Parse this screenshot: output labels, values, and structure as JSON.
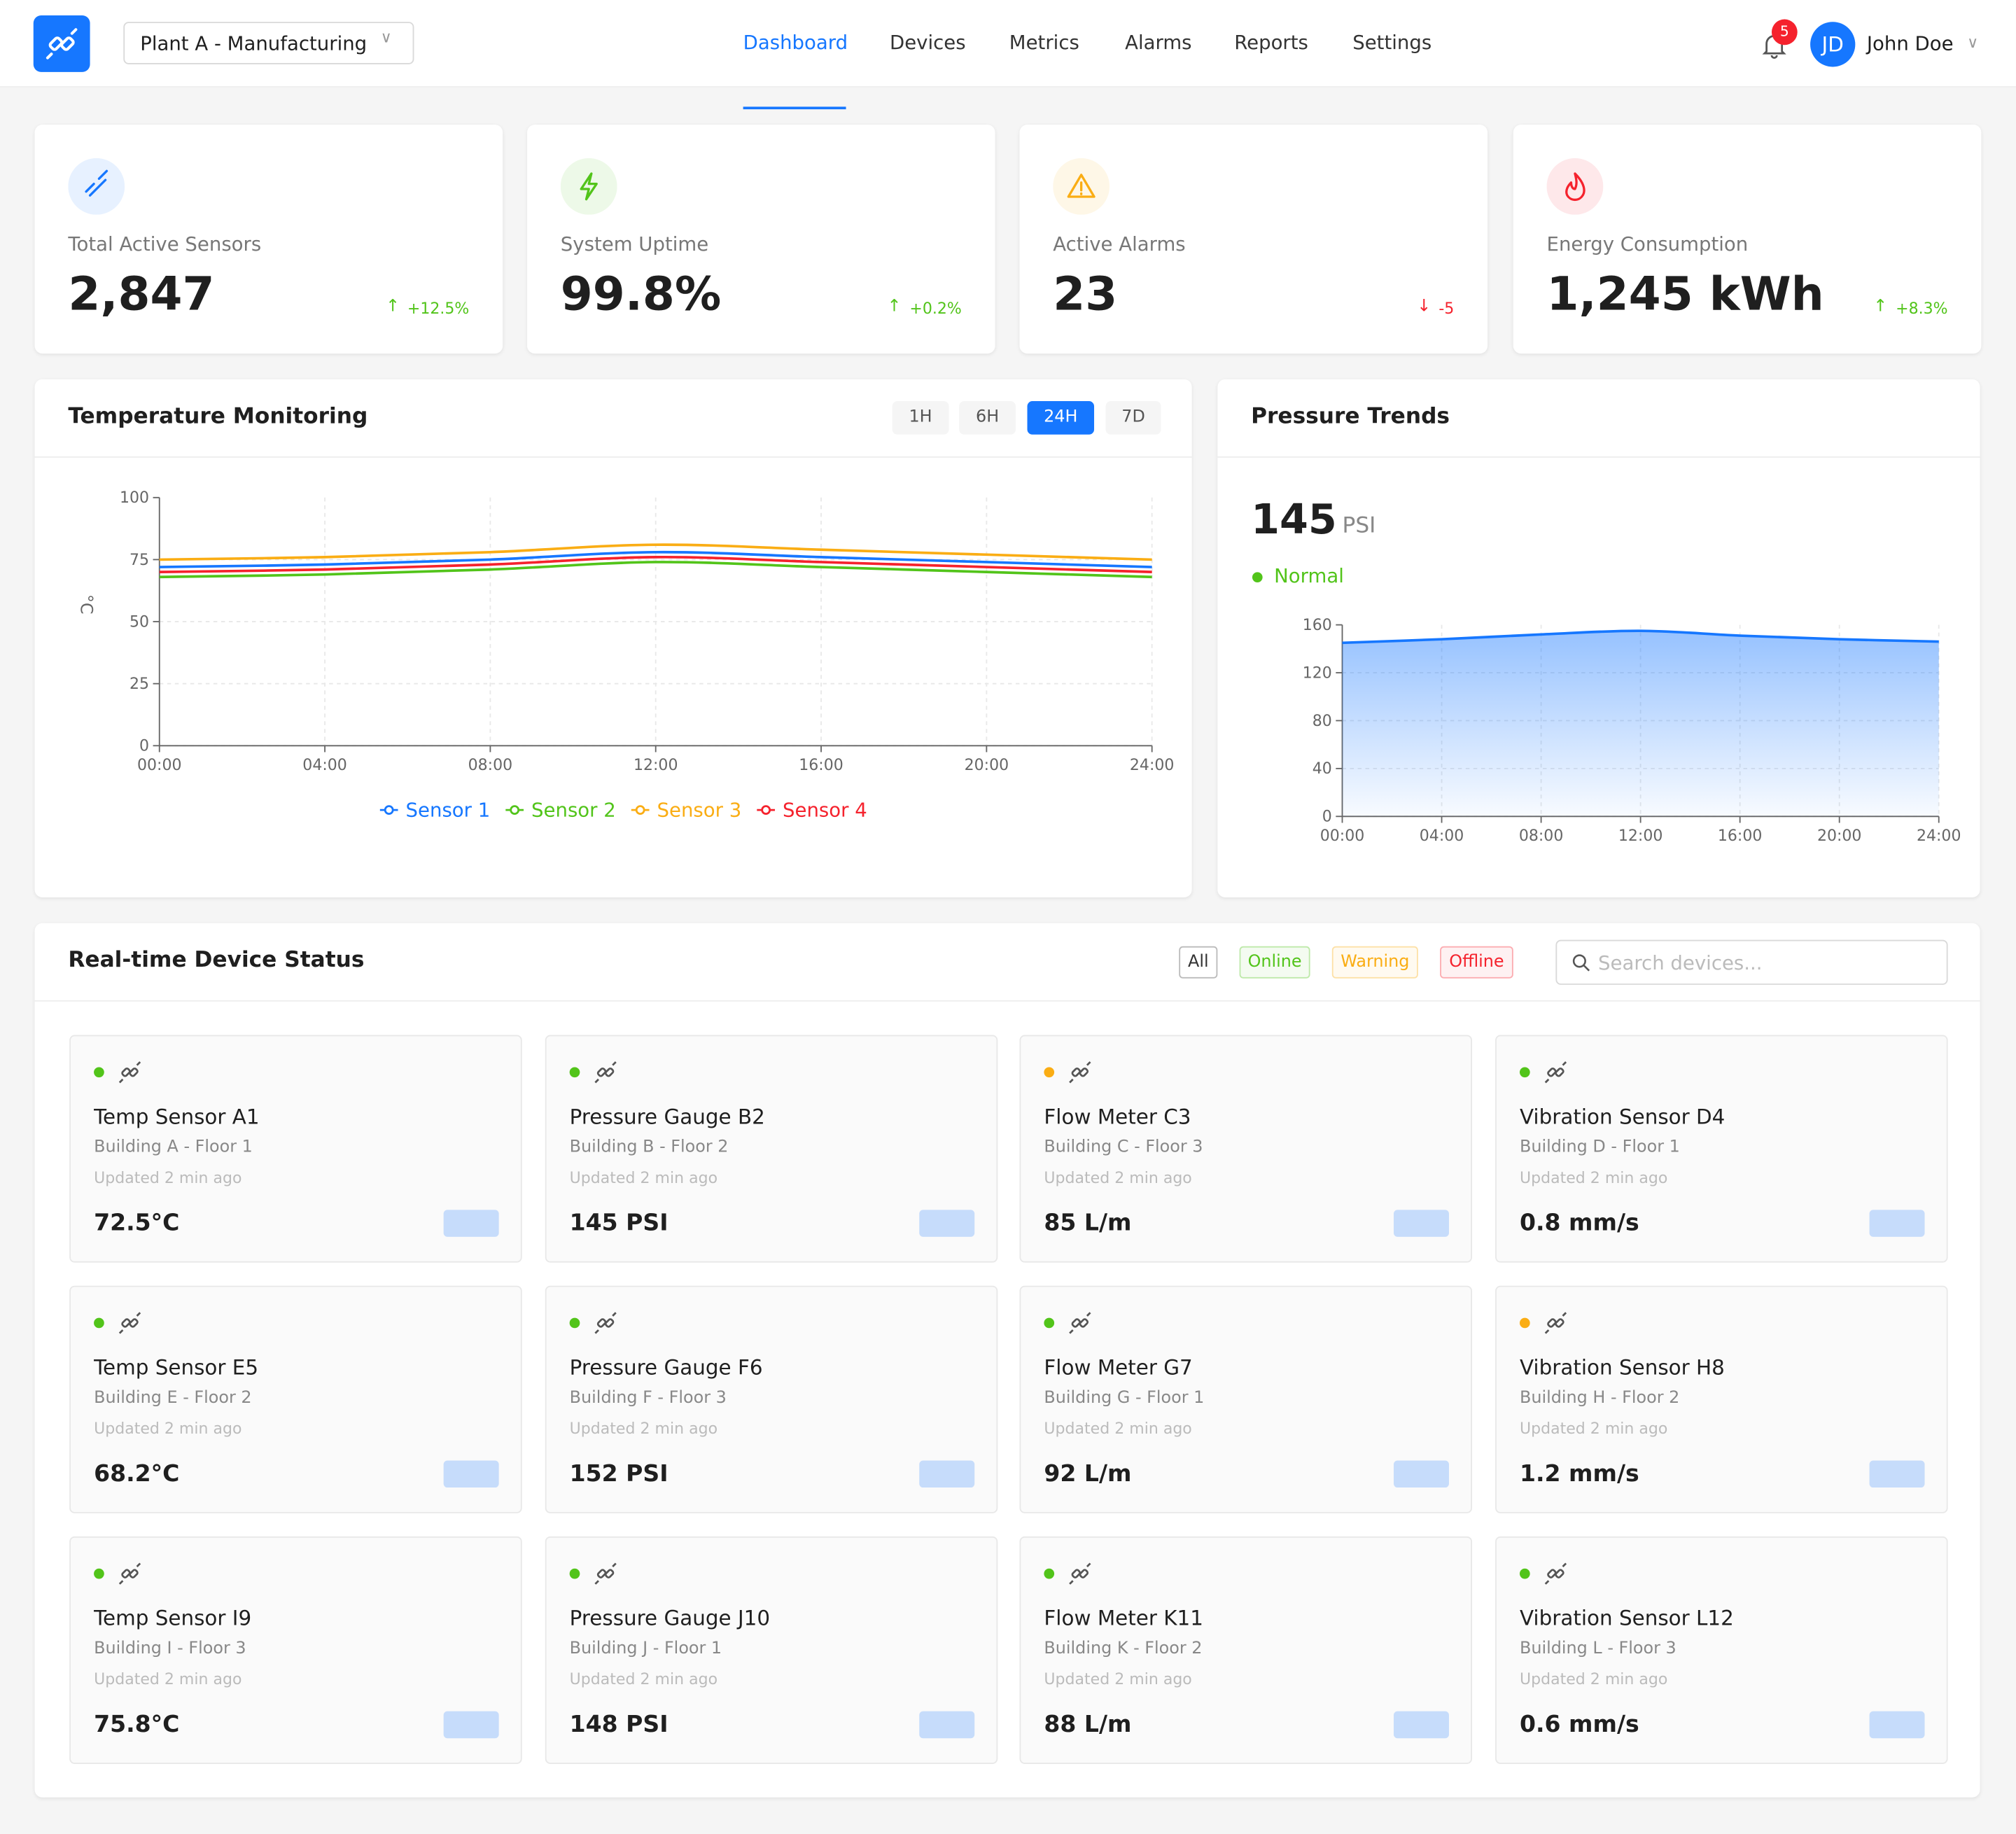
{
  "header": {
    "plant": "Plant A - Manufacturing",
    "nav": [
      {
        "label": "Dashboard",
        "active": true
      },
      {
        "label": "Devices"
      },
      {
        "label": "Metrics"
      },
      {
        "label": "Alarms"
      },
      {
        "label": "Reports"
      },
      {
        "label": "Settings"
      }
    ],
    "notifications": 5,
    "user_initials": "JD",
    "user_name": "John Doe"
  },
  "kpis": [
    {
      "label": "Total Active Sensors",
      "value": "2,847",
      "change": "+12.5%",
      "trend": "up",
      "color": "#1677ff"
    },
    {
      "label": "System Uptime",
      "value": "99.8%",
      "change": "+0.2%",
      "trend": "up",
      "color": "#52c41a"
    },
    {
      "label": "Active Alarms",
      "value": "23",
      "change": "-5",
      "trend": "down",
      "color": "#faad14"
    },
    {
      "label": "Energy Consumption",
      "value": "1,245 kWh",
      "change": "+8.3%",
      "trend": "up",
      "color": "#f5222d"
    }
  ],
  "temperature_panel": {
    "title": "Temperature Monitoring",
    "ranges": [
      {
        "label": "1H"
      },
      {
        "label": "6H"
      },
      {
        "label": "24H",
        "active": true
      },
      {
        "label": "7D"
      }
    ]
  },
  "pressure_panel": {
    "title": "Pressure Trends",
    "reading": 145,
    "unit": "PSI",
    "status": "Normal",
    "status_color": "#52c41a"
  },
  "chart_data": [
    {
      "type": "line",
      "y_label": "°C",
      "categories": [
        "00:00",
        "04:00",
        "08:00",
        "12:00",
        "16:00",
        "20:00",
        "24:00"
      ],
      "series": [
        {
          "name": "Sensor 1",
          "color": "#1677ff",
          "values": [
            72,
            73,
            75,
            78,
            76,
            74,
            72
          ]
        },
        {
          "name": "Sensor 2",
          "color": "#52c41a",
          "values": [
            68,
            69,
            71,
            74,
            72,
            70,
            68
          ]
        },
        {
          "name": "Sensor 3",
          "color": "#faad14",
          "values": [
            75,
            76,
            78,
            81,
            79,
            77,
            75
          ]
        },
        {
          "name": "Sensor 4",
          "color": "#f5222d",
          "values": [
            70,
            71,
            73,
            76,
            74,
            72,
            70
          ]
        }
      ],
      "ylim": [
        0,
        100
      ],
      "yticks": [
        0,
        25,
        50,
        75,
        100
      ],
      "grid": true,
      "legend": "bottom"
    },
    {
      "type": "area",
      "categories": [
        "00:00",
        "04:00",
        "08:00",
        "12:00",
        "16:00",
        "20:00",
        "24:00"
      ],
      "values": [
        145,
        148,
        152,
        155,
        151,
        148,
        146
      ],
      "color": "#1677ff",
      "ylim": [
        0,
        160
      ],
      "yticks": [
        0,
        40,
        80,
        120,
        160
      ],
      "grid": true
    }
  ],
  "device_panel": {
    "title": "Real-time Device Status",
    "filters": [
      {
        "label": "All",
        "color": "#333333"
      },
      {
        "label": "Online",
        "color": "#52c41a"
      },
      {
        "label": "Warning",
        "color": "#faad14"
      },
      {
        "label": "Offline",
        "color": "#f5222d"
      }
    ],
    "search_placeholder": "Search devices...",
    "devices": [
      {
        "name": "Temp Sensor A1",
        "location": "Building A - Floor 1",
        "updated": "Updated 2 min ago",
        "value": "72.5°C",
        "status_color": "#52c41a"
      },
      {
        "name": "Pressure Gauge B2",
        "location": "Building B - Floor 2",
        "updated": "Updated 2 min ago",
        "value": "145 PSI",
        "status_color": "#52c41a"
      },
      {
        "name": "Flow Meter C3",
        "location": "Building C - Floor 3",
        "updated": "Updated 2 min ago",
        "value": "85 L/m",
        "status_color": "#faad14"
      },
      {
        "name": "Vibration Sensor D4",
        "location": "Building D - Floor 1",
        "updated": "Updated 2 min ago",
        "value": "0.8 mm/s",
        "status_color": "#52c41a"
      },
      {
        "name": "Temp Sensor E5",
        "location": "Building E - Floor 2",
        "updated": "Updated 2 min ago",
        "value": "68.2°C",
        "status_color": "#52c41a"
      },
      {
        "name": "Pressure Gauge F6",
        "location": "Building F - Floor 3",
        "updated": "Updated 2 min ago",
        "value": "152 PSI",
        "status_color": "#52c41a"
      },
      {
        "name": "Flow Meter G7",
        "location": "Building G - Floor 1",
        "updated": "Updated 2 min ago",
        "value": "92 L/m",
        "status_color": "#52c41a"
      },
      {
        "name": "Vibration Sensor H8",
        "location": "Building H - Floor 2",
        "updated": "Updated 2 min ago",
        "value": "1.2 mm/s",
        "status_color": "#faad14"
      },
      {
        "name": "Temp Sensor I9",
        "location": "Building I - Floor 3",
        "updated": "Updated 2 min ago",
        "value": "75.8°C",
        "status_color": "#52c41a"
      },
      {
        "name": "Pressure Gauge J10",
        "location": "Building J - Floor 1",
        "updated": "Updated 2 min ago",
        "value": "148 PSI",
        "status_color": "#52c41a"
      },
      {
        "name": "Flow Meter K11",
        "location": "Building K - Floor 2",
        "updated": "Updated 2 min ago",
        "value": "88 L/m",
        "status_color": "#52c41a"
      },
      {
        "name": "Vibration Sensor L12",
        "location": "Building L - Floor 3",
        "updated": "Updated 2 min ago",
        "value": "0.6 mm/s",
        "status_color": "#52c41a"
      }
    ]
  }
}
